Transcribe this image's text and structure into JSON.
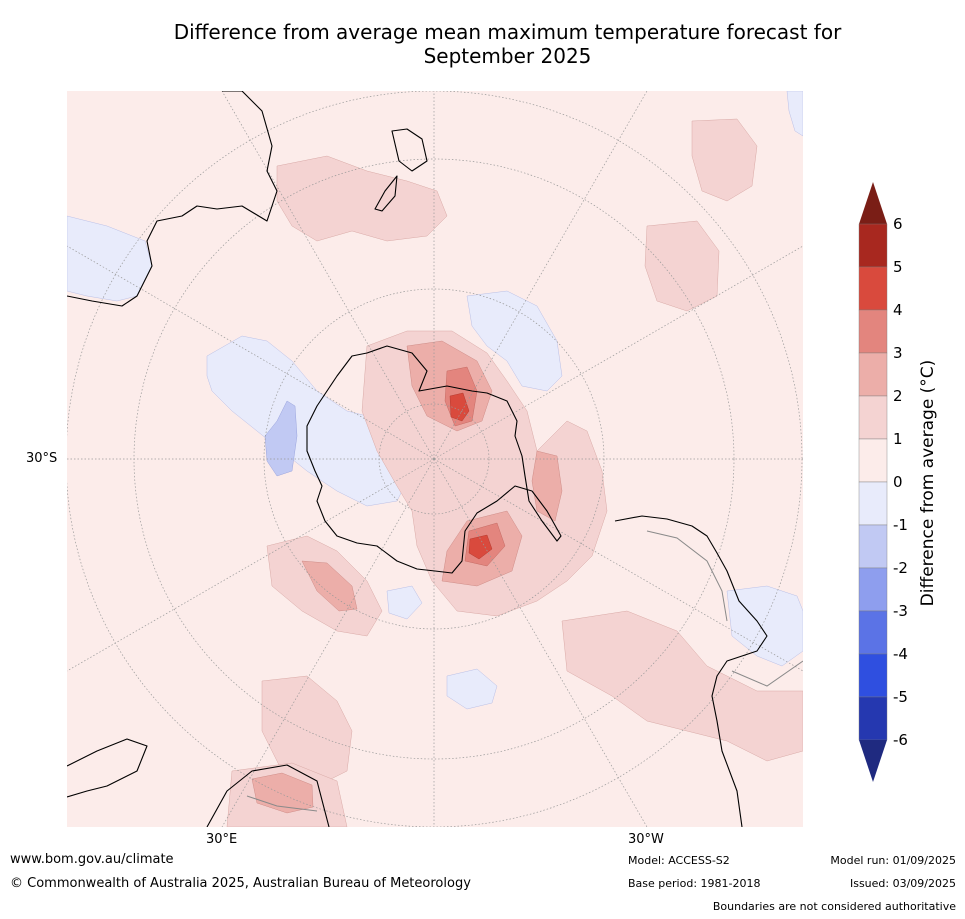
{
  "title": {
    "line1": "Difference from average mean maximum temperature forecast for",
    "line2": "September 2025"
  },
  "map": {
    "projection": "south-polar-stereographic",
    "graticule_labels": {
      "lat": "30°S",
      "lon_east": "30°E",
      "lon_west": "30°W"
    },
    "colors": {
      "ocean_base": "#fcecea",
      "anomaly_neg1": "#e8ebfb",
      "anomaly_neg2": "#c1c9f3",
      "anomaly_pos1": "#f4d3d2",
      "anomaly_pos2": "#ecaea9",
      "anomaly_pos3": "#e3857e",
      "anomaly_pos4": "#d94a3d",
      "coast": "#000000",
      "boundary": "#8a8a8a",
      "graticule": "#999999"
    }
  },
  "colorbar": {
    "label": "Difference from average (°C)",
    "ticks": [
      "6",
      "5",
      "4",
      "3",
      "2",
      "1",
      "0",
      "-1",
      "-2",
      "-3",
      "-4",
      "-5",
      "-6"
    ],
    "levels": [
      {
        "range": ">6",
        "color": "#7a1e16"
      },
      {
        "range": "5 to 6",
        "color": "#a8281f"
      },
      {
        "range": "4 to 5",
        "color": "#d94a3d"
      },
      {
        "range": "3 to 4",
        "color": "#e3857e"
      },
      {
        "range": "2 to 3",
        "color": "#ecaea9"
      },
      {
        "range": "1 to 2",
        "color": "#f4d3d2"
      },
      {
        "range": "0 to 1",
        "color": "#fcecea"
      },
      {
        "range": "-1 to 0",
        "color": "#e8ebfb"
      },
      {
        "range": "-2 to -1",
        "color": "#c1c9f3"
      },
      {
        "range": "-3 to -2",
        "color": "#8e9eee"
      },
      {
        "range": "-4 to -3",
        "color": "#5b73e6"
      },
      {
        "range": "-5 to -4",
        "color": "#2f4fe0"
      },
      {
        "range": "-6 to -5",
        "color": "#2538b0"
      },
      {
        "range": "<-6",
        "color": "#1f2a80"
      }
    ]
  },
  "footer": {
    "url": "www.bom.gov.au/climate",
    "copyright": "© Commonwealth of Australia 2025, Australian Bureau of Meteorology",
    "model": "Model: ACCESS-S2",
    "base_period": "Base period: 1981-2018",
    "model_run": "Model run: 01/09/2025",
    "issued": "Issued: 03/09/2025",
    "disclaimer": "Boundaries are not considered authoritative"
  }
}
